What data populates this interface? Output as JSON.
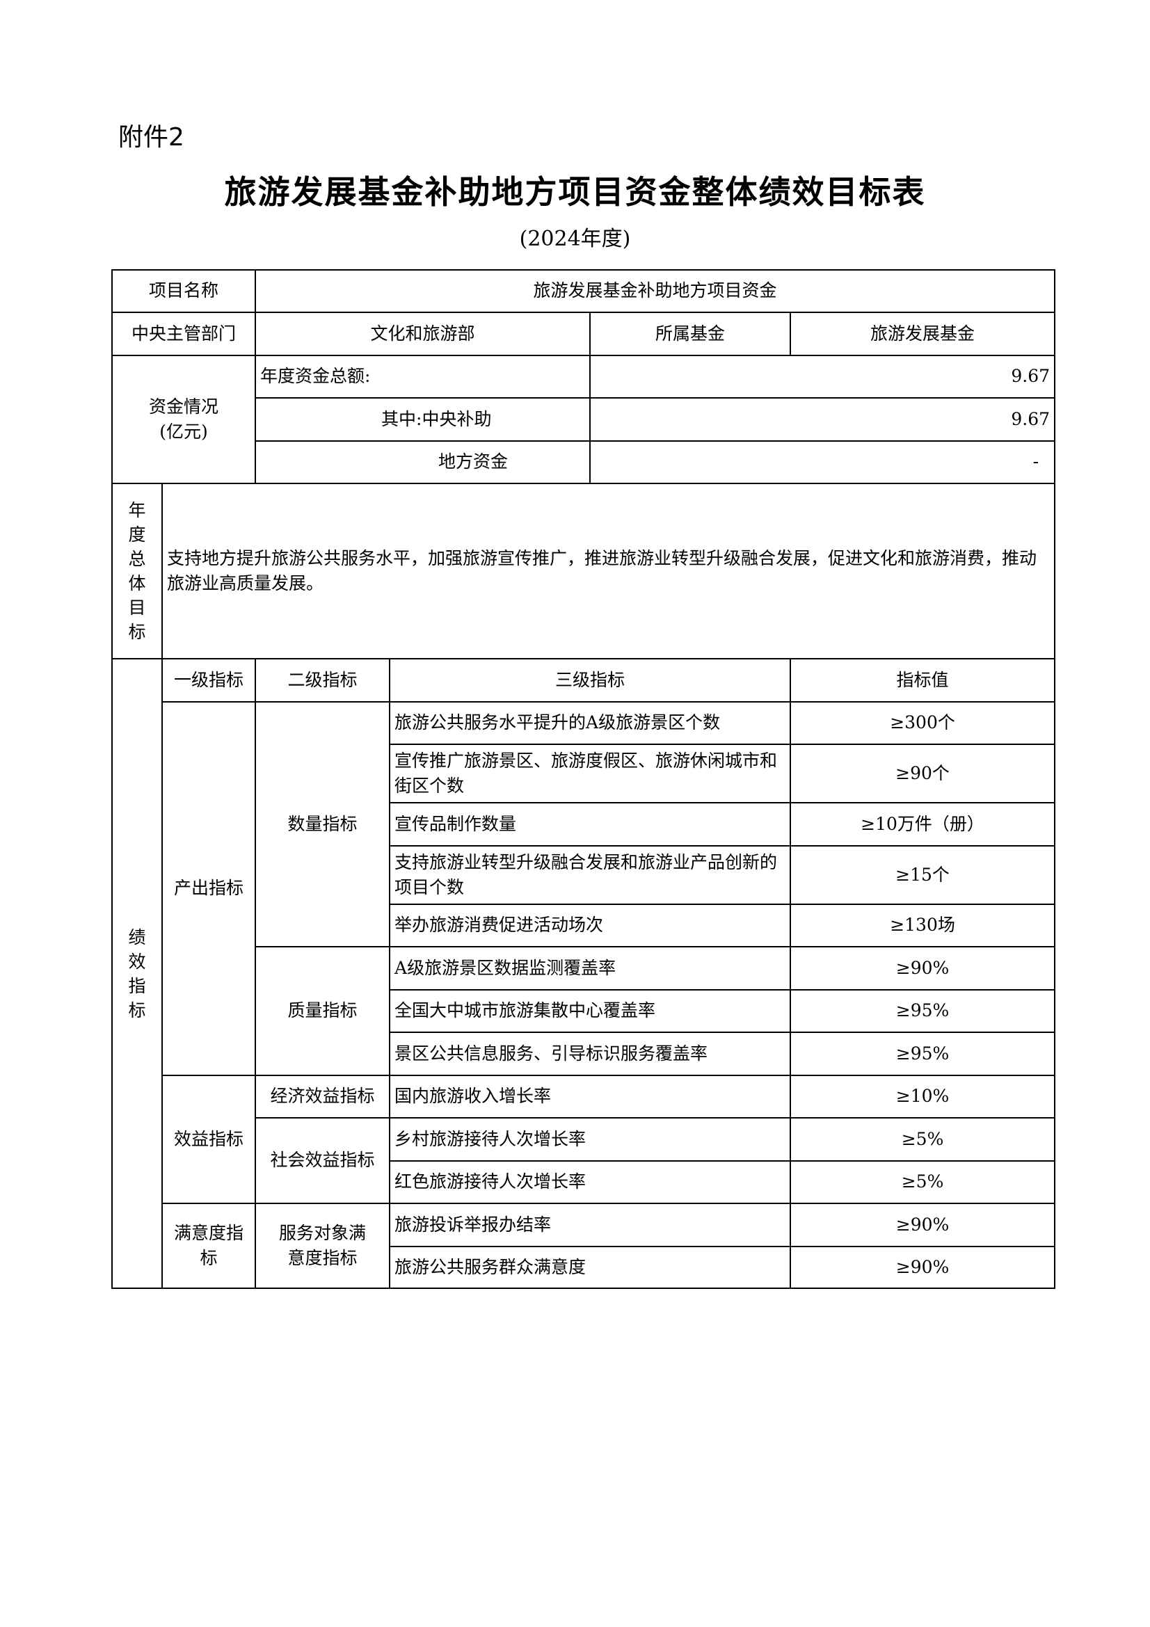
{
  "attachment": "附件2",
  "title": "旅游发展基金补助地方项目资金整体绩效目标表",
  "subtitle": "(2024年度)",
  "project": {
    "label": "项目名称",
    "value": "旅游发展基金补助地方项目资金"
  },
  "dept": {
    "label": "中央主管部门",
    "value": "文化和旅游部",
    "fund_label": "所属基金",
    "fund_value": "旅游发展基金"
  },
  "funds": {
    "label": "资金情况",
    "unit": "(亿元)",
    "rows": [
      {
        "label": "年度资金总额:",
        "value": "9.67"
      },
      {
        "label": "其中:中央补助",
        "value": "9.67"
      },
      {
        "label": "地方资金",
        "value": "-"
      }
    ]
  },
  "goal": {
    "label": "年度总体目标",
    "text": "支持地方提升旅游公共服务水平，加强旅游宣传推广，推进旅游业转型升级融合发展，促进文化和旅游消费，推动旅游业高质量发展。"
  },
  "perf": {
    "label": "绩效指标",
    "headers": [
      "一级指标",
      "二级指标",
      "三级指标",
      "指标值"
    ],
    "level1": [
      "产出指标",
      "效益指标",
      "满意度指标"
    ],
    "level2": [
      "数量指标",
      "质量指标",
      "经济效益指标",
      "社会效益指标",
      "服务对象满意度指标"
    ],
    "rows": [
      {
        "name": "旅游公共服务水平提升的A级旅游景区个数",
        "value": "≥300个"
      },
      {
        "name": "宣传推广旅游景区、旅游度假区、旅游休闲城市和街区个数",
        "value": "≥90个"
      },
      {
        "name": "宣传品制作数量",
        "value": "≥10万件（册）"
      },
      {
        "name": "支持旅游业转型升级融合发展和旅游业产品创新的项目个数",
        "value": "≥15个"
      },
      {
        "name": "举办旅游消费促进活动场次",
        "value": "≥130场"
      },
      {
        "name": "A级旅游景区数据监测覆盖率",
        "value": "≥90%"
      },
      {
        "name": "全国大中城市旅游集散中心覆盖率",
        "value": "≥95%"
      },
      {
        "name": "景区公共信息服务、引导标识服务覆盖率",
        "value": "≥95%"
      },
      {
        "name": "国内旅游收入增长率",
        "value": "≥10%"
      },
      {
        "name": "乡村旅游接待人次增长率",
        "value": "≥5%"
      },
      {
        "name": "红色旅游接待人次增长率",
        "value": "≥5%"
      },
      {
        "name": "旅游投诉举报办结率",
        "value": "≥90%"
      },
      {
        "name": "旅游公共服务群众满意度",
        "value": "≥90%"
      }
    ]
  }
}
